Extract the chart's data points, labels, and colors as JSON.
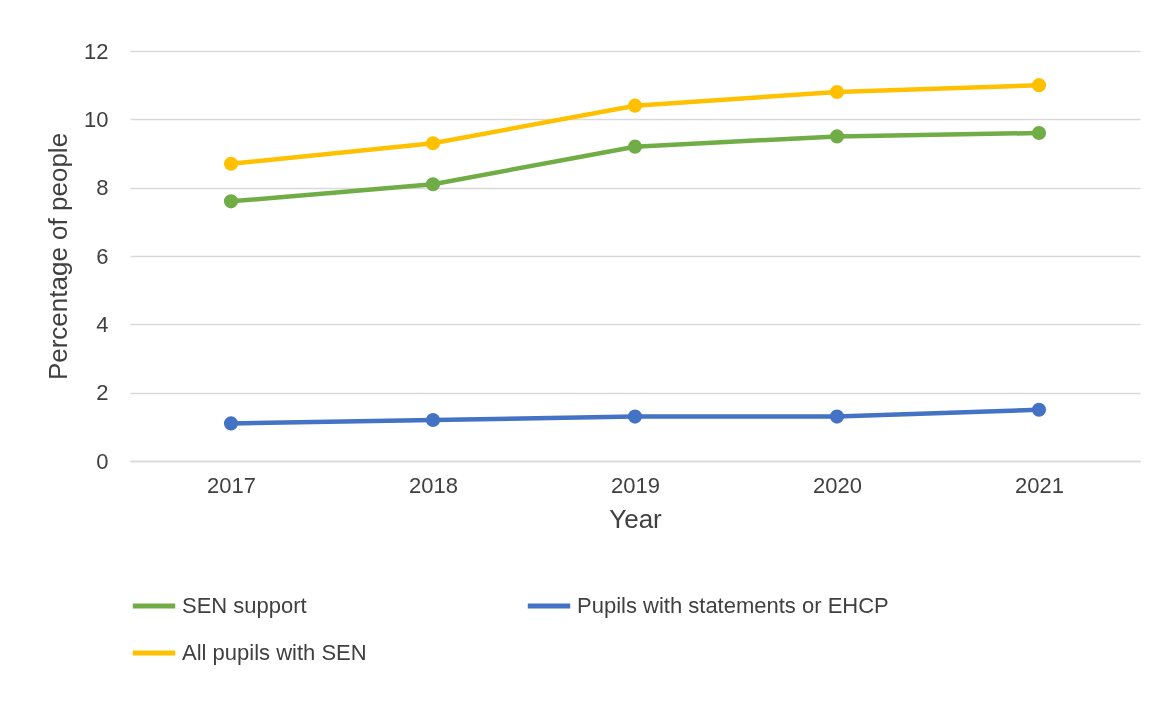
{
  "chart_data": {
    "type": "line",
    "xlabel": "Year",
    "ylabel": "Percentage of people",
    "categories": [
      "2017",
      "2018",
      "2019",
      "2020",
      "2021"
    ],
    "series": [
      {
        "name": "SEN support",
        "color": "#70ad47",
        "values": [
          7.6,
          8.1,
          9.2,
          9.5,
          9.6
        ]
      },
      {
        "name": "Pupils with statements or EHCP",
        "color": "#4472c4",
        "values": [
          1.1,
          1.2,
          1.3,
          1.3,
          1.5
        ]
      },
      {
        "name": "All pupils with SEN",
        "color": "#ffc000",
        "values": [
          8.7,
          9.3,
          10.4,
          10.8,
          11.0
        ]
      }
    ],
    "ylim": [
      0,
      12
    ],
    "yticks": [
      0,
      2,
      4,
      6,
      8,
      10,
      12
    ],
    "grid": "y",
    "legend": "bottom",
    "marker": "circle",
    "line_style": "solid"
  }
}
